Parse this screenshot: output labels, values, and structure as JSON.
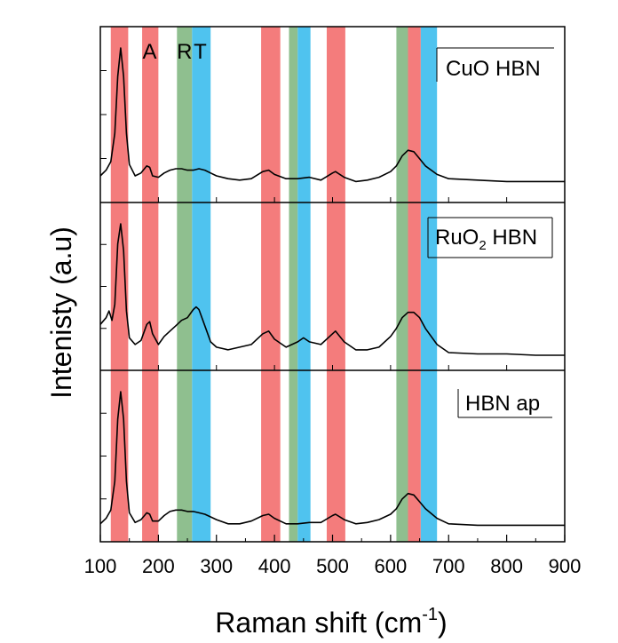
{
  "chart_data": {
    "type": "line",
    "title": "",
    "xlabel": "Raman shift (cm",
    "xlabel_sup": "-1",
    "xlabel_tail": ")",
    "ylabel": "Intenisty (a.u)",
    "xlim": [
      100,
      900
    ],
    "x_ticks": [
      "100",
      "200",
      "300",
      "400",
      "500",
      "600",
      "700",
      "800",
      "900"
    ],
    "grid": false,
    "band_labels": [
      {
        "text": "A",
        "x": 185
      },
      {
        "text": "R",
        "x": 245
      },
      {
        "text": "T",
        "x": 272
      }
    ],
    "bands": [
      {
        "phase": "A",
        "color": "#f47c7c",
        "from": 118,
        "to": 148
      },
      {
        "phase": "A",
        "color": "#f47c7c",
        "from": 172,
        "to": 200
      },
      {
        "phase": "R",
        "color": "#8fbf8f",
        "from": 232,
        "to": 258
      },
      {
        "phase": "T",
        "color": "#4fc3ef",
        "from": 258,
        "to": 290
      },
      {
        "phase": "A",
        "color": "#f47c7c",
        "from": 377,
        "to": 410
      },
      {
        "phase": "R",
        "color": "#8fbf8f",
        "from": 425,
        "to": 440
      },
      {
        "phase": "T",
        "color": "#4fc3ef",
        "from": 440,
        "to": 462
      },
      {
        "phase": "A",
        "color": "#f47c7c",
        "from": 490,
        "to": 522
      },
      {
        "phase": "R",
        "color": "#8fbf8f",
        "from": 610,
        "to": 630
      },
      {
        "phase": "A",
        "color": "#f47c7c",
        "from": 630,
        "to": 652
      },
      {
        "phase": "T",
        "color": "#4fc3ef",
        "from": 652,
        "to": 680
      }
    ],
    "panels": [
      {
        "label": "CuO HBN",
        "x": [
          100,
          110,
          118,
          125,
          130,
          135,
          140,
          145,
          150,
          160,
          170,
          180,
          185,
          190,
          200,
          210,
          220,
          230,
          240,
          250,
          260,
          270,
          280,
          290,
          300,
          320,
          340,
          360,
          380,
          390,
          400,
          420,
          440,
          460,
          480,
          500,
          505,
          520,
          540,
          560,
          580,
          600,
          610,
          620,
          630,
          640,
          650,
          660,
          680,
          700,
          750,
          800,
          850,
          900
        ],
        "y": [
          0.1,
          0.14,
          0.2,
          0.4,
          0.8,
          1.0,
          0.8,
          0.4,
          0.18,
          0.1,
          0.12,
          0.17,
          0.16,
          0.1,
          0.09,
          0.12,
          0.14,
          0.15,
          0.15,
          0.14,
          0.14,
          0.15,
          0.14,
          0.12,
          0.1,
          0.08,
          0.07,
          0.08,
          0.13,
          0.14,
          0.11,
          0.08,
          0.08,
          0.09,
          0.07,
          0.12,
          0.13,
          0.09,
          0.06,
          0.07,
          0.09,
          0.13,
          0.17,
          0.24,
          0.28,
          0.27,
          0.22,
          0.17,
          0.11,
          0.08,
          0.07,
          0.06,
          0.06,
          0.06
        ]
      },
      {
        "label": "RuO",
        "label_sub": "2",
        "label_tail": " HBN",
        "x": [
          100,
          110,
          115,
          120,
          125,
          130,
          135,
          140,
          145,
          150,
          160,
          170,
          180,
          185,
          190,
          200,
          210,
          220,
          230,
          240,
          250,
          260,
          265,
          270,
          280,
          290,
          300,
          320,
          340,
          360,
          380,
          390,
          400,
          420,
          440,
          450,
          460,
          480,
          500,
          505,
          520,
          540,
          560,
          580,
          600,
          610,
          620,
          630,
          640,
          650,
          660,
          680,
          700,
          750,
          800,
          850,
          900
        ],
        "y": [
          0.25,
          0.3,
          0.35,
          0.28,
          0.4,
          0.85,
          1.0,
          0.8,
          0.35,
          0.15,
          0.1,
          0.13,
          0.25,
          0.27,
          0.18,
          0.1,
          0.16,
          0.2,
          0.24,
          0.28,
          0.3,
          0.36,
          0.38,
          0.36,
          0.24,
          0.12,
          0.08,
          0.06,
          0.08,
          0.1,
          0.18,
          0.2,
          0.14,
          0.08,
          0.12,
          0.15,
          0.12,
          0.1,
          0.18,
          0.2,
          0.12,
          0.06,
          0.06,
          0.08,
          0.16,
          0.22,
          0.3,
          0.34,
          0.34,
          0.3,
          0.22,
          0.1,
          0.04,
          0.03,
          0.03,
          0.02,
          0.02
        ]
      },
      {
        "label": "HBN ap",
        "x": [
          100,
          110,
          118,
          125,
          130,
          135,
          140,
          145,
          150,
          160,
          170,
          180,
          185,
          190,
          200,
          210,
          220,
          230,
          240,
          250,
          260,
          270,
          280,
          290,
          300,
          320,
          340,
          360,
          380,
          390,
          400,
          420,
          440,
          460,
          480,
          500,
          505,
          520,
          540,
          560,
          580,
          600,
          610,
          620,
          630,
          640,
          650,
          660,
          680,
          700,
          750,
          800,
          850,
          900
        ],
        "y": [
          0.04,
          0.08,
          0.14,
          0.35,
          0.8,
          1.0,
          0.8,
          0.35,
          0.12,
          0.05,
          0.07,
          0.12,
          0.11,
          0.06,
          0.06,
          0.1,
          0.13,
          0.14,
          0.14,
          0.13,
          0.13,
          0.12,
          0.11,
          0.09,
          0.07,
          0.04,
          0.04,
          0.06,
          0.1,
          0.11,
          0.08,
          0.04,
          0.04,
          0.05,
          0.05,
          0.1,
          0.11,
          0.07,
          0.04,
          0.05,
          0.07,
          0.11,
          0.15,
          0.22,
          0.26,
          0.25,
          0.2,
          0.15,
          0.08,
          0.04,
          0.03,
          0.03,
          0.03,
          0.03
        ]
      }
    ]
  }
}
